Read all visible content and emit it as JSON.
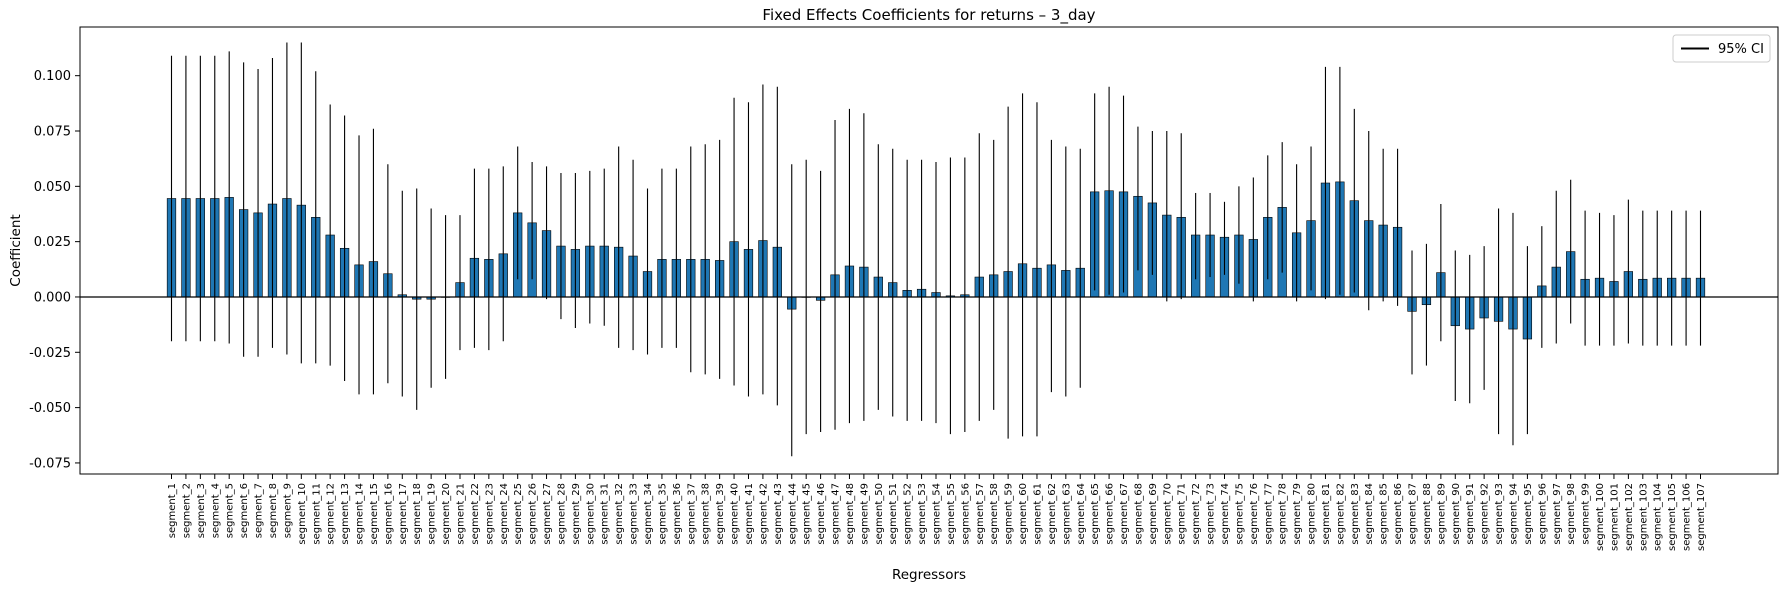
{
  "chart_data": {
    "type": "bar",
    "title": "Fixed Effects Coefficients for returns – 3_day",
    "xlabel": "Regressors",
    "ylabel": "Coefficient",
    "ylim": [
      -0.08,
      0.122
    ],
    "yticks": [
      "-0.075",
      "-0.050",
      "-0.025",
      "0.000",
      "0.025",
      "0.050",
      "0.075",
      "0.100"
    ],
    "ytick_values": [
      -0.075,
      -0.05,
      -0.025,
      0.0,
      0.025,
      0.05,
      0.075,
      0.1
    ],
    "grid": false,
    "legend": {
      "label": "95% CI",
      "position": "top-right"
    },
    "colors": {
      "bar": "#1f77b4",
      "bar_edge": "#000000",
      "ci": "#000000",
      "zero_line": "#000000"
    },
    "categories": [
      "segment_1",
      "segment_2",
      "segment_3",
      "segment_4",
      "segment_5",
      "segment_6",
      "segment_7",
      "segment_8",
      "segment_9",
      "segment_10",
      "segment_11",
      "segment_12",
      "segment_13",
      "segment_14",
      "segment_15",
      "segment_16",
      "segment_17",
      "segment_18",
      "segment_19",
      "segment_20",
      "segment_21",
      "segment_22",
      "segment_23",
      "segment_24",
      "segment_25",
      "segment_26",
      "segment_27",
      "segment_28",
      "segment_29",
      "segment_30",
      "segment_31",
      "segment_32",
      "segment_33",
      "segment_34",
      "segment_35",
      "segment_36",
      "segment_37",
      "segment_38",
      "segment_39",
      "segment_40",
      "segment_41",
      "segment_42",
      "segment_43",
      "segment_44",
      "segment_45",
      "segment_46",
      "segment_47",
      "segment_48",
      "segment_49",
      "segment_50",
      "segment_51",
      "segment_52",
      "segment_53",
      "segment_54",
      "segment_55",
      "segment_56",
      "segment_57",
      "segment_58",
      "segment_59",
      "segment_60",
      "segment_61",
      "segment_62",
      "segment_63",
      "segment_64",
      "segment_65",
      "segment_66",
      "segment_67",
      "segment_68",
      "segment_69",
      "segment_70",
      "segment_71",
      "segment_72",
      "segment_73",
      "segment_74",
      "segment_75",
      "segment_76",
      "segment_77",
      "segment_78",
      "segment_79",
      "segment_80",
      "segment_81",
      "segment_82",
      "segment_83",
      "segment_84",
      "segment_85",
      "segment_86",
      "segment_87",
      "segment_88",
      "segment_89",
      "segment_90",
      "segment_91",
      "segment_92",
      "segment_93",
      "segment_94",
      "segment_95",
      "segment_96",
      "segment_97",
      "segment_98",
      "segment_99",
      "segment_100",
      "segment_101",
      "segment_102",
      "segment_103",
      "segment_104",
      "segment_105",
      "segment_106",
      "segment_107"
    ],
    "values": [
      0.0445,
      0.0445,
      0.0445,
      0.0445,
      0.045,
      0.0395,
      0.038,
      0.042,
      0.0445,
      0.0415,
      0.036,
      0.028,
      0.022,
      0.0145,
      0.016,
      0.0105,
      0.001,
      -0.001,
      -0.001,
      0.0,
      0.0065,
      0.0175,
      0.017,
      0.0195,
      0.038,
      0.0335,
      0.03,
      0.023,
      0.0215,
      0.023,
      0.023,
      0.0225,
      0.0185,
      0.0115,
      0.017,
      0.017,
      0.017,
      0.017,
      0.0165,
      0.025,
      0.0215,
      0.0255,
      0.0225,
      -0.0055,
      0.0,
      -0.0015,
      0.01,
      0.014,
      0.0135,
      0.009,
      0.0065,
      0.003,
      0.0035,
      0.002,
      0.0005,
      0.001,
      0.009,
      0.01,
      0.0115,
      0.015,
      0.013,
      0.0145,
      0.012,
      0.013,
      0.0475,
      0.048,
      0.0475,
      0.0455,
      0.0425,
      0.037,
      0.036,
      0.028,
      0.028,
      0.027,
      0.028,
      0.026,
      0.036,
      0.0405,
      0.029,
      0.0345,
      0.0515,
      0.052,
      0.0435,
      0.0345,
      0.0325,
      0.0315,
      -0.0065,
      -0.0035,
      0.011,
      -0.013,
      -0.0145,
      -0.0095,
      -0.011,
      -0.0145,
      -0.019,
      0.005,
      0.0135,
      0.0205,
      0.008,
      0.0085,
      0.007,
      0.0115,
      0.008,
      0.0085,
      0.0085,
      0.0085,
      0.0085
    ],
    "ci_lower": [
      -0.02,
      -0.02,
      -0.02,
      -0.02,
      -0.021,
      -0.027,
      -0.027,
      -0.023,
      -0.026,
      -0.03,
      -0.03,
      -0.031,
      -0.038,
      -0.044,
      -0.044,
      -0.039,
      -0.045,
      -0.051,
      -0.041,
      -0.037,
      -0.024,
      -0.023,
      -0.024,
      -0.02,
      0.008,
      0.008,
      -0.001,
      -0.01,
      -0.014,
      -0.012,
      -0.013,
      -0.023,
      -0.024,
      -0.026,
      -0.023,
      -0.023,
      -0.034,
      -0.035,
      -0.037,
      -0.04,
      -0.045,
      -0.044,
      -0.049,
      -0.072,
      -0.062,
      -0.061,
      -0.06,
      -0.057,
      -0.056,
      -0.051,
      -0.054,
      -0.056,
      -0.056,
      -0.057,
      -0.062,
      -0.061,
      -0.056,
      -0.051,
      -0.064,
      -0.063,
      -0.063,
      -0.043,
      -0.045,
      -0.041,
      0.003,
      0.001,
      0.002,
      0.012,
      0.01,
      -0.002,
      -0.001,
      0.008,
      0.009,
      0.01,
      0.006,
      -0.002,
      0.008,
      0.011,
      -0.002,
      0.003,
      -0.001,
      0.001,
      0.002,
      -0.006,
      -0.002,
      -0.004,
      -0.035,
      -0.031,
      -0.02,
      -0.047,
      -0.048,
      -0.042,
      -0.062,
      -0.067,
      -0.062,
      -0.023,
      -0.021,
      -0.012,
      -0.022,
      -0.022,
      -0.022,
      -0.021,
      -0.022,
      -0.022,
      -0.022,
      -0.022,
      -0.022
    ],
    "ci_upper": [
      0.109,
      0.109,
      0.109,
      0.109,
      0.111,
      0.106,
      0.103,
      0.108,
      0.115,
      0.115,
      0.102,
      0.087,
      0.082,
      0.073,
      0.076,
      0.06,
      0.048,
      0.049,
      0.04,
      0.037,
      0.037,
      0.058,
      0.058,
      0.059,
      0.068,
      0.061,
      0.059,
      0.056,
      0.056,
      0.057,
      0.058,
      0.068,
      0.062,
      0.049,
      0.058,
      0.058,
      0.068,
      0.069,
      0.071,
      0.09,
      0.088,
      0.096,
      0.095,
      0.06,
      0.062,
      0.057,
      0.08,
      0.085,
      0.083,
      0.069,
      0.067,
      0.062,
      0.062,
      0.061,
      0.063,
      0.063,
      0.074,
      0.071,
      0.086,
      0.092,
      0.088,
      0.071,
      0.068,
      0.067,
      0.092,
      0.095,
      0.091,
      0.077,
      0.075,
      0.075,
      0.074,
      0.047,
      0.047,
      0.043,
      0.05,
      0.054,
      0.064,
      0.07,
      0.06,
      0.068,
      0.104,
      0.104,
      0.085,
      0.075,
      0.067,
      0.067,
      0.021,
      0.024,
      0.042,
      0.021,
      0.019,
      0.023,
      0.04,
      0.038,
      0.023,
      0.032,
      0.048,
      0.053,
      0.039,
      0.038,
      0.037,
      0.044,
      0.039,
      0.039,
      0.039,
      0.039,
      0.039
    ]
  }
}
